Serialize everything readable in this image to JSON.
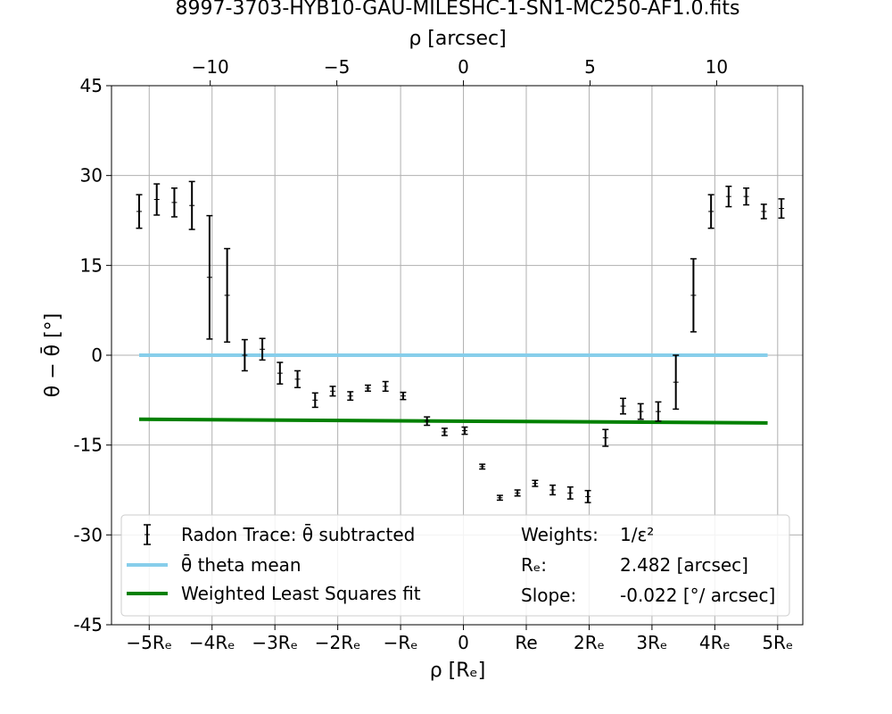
{
  "chart_data": {
    "type": "scatter",
    "title": "8997-3703-HYB10-GAU-MILESHC-1-SN1-MC250-AF1.0.fits",
    "xlabel": "ρ [Rₑ]",
    "xlabel_top": "ρ [arcsec]",
    "ylabel": "θ − θ̄ [°]",
    "xlim": [
      -5.6,
      5.4
    ],
    "ylim": [
      -45,
      45
    ],
    "grid": true,
    "legend_position": "lower center",
    "xticks_bottom": [
      {
        "value": -5,
        "label": "−5Rₑ"
      },
      {
        "value": -4,
        "label": "−4Rₑ"
      },
      {
        "value": -3,
        "label": "−3Rₑ"
      },
      {
        "value": -2,
        "label": "−2Rₑ"
      },
      {
        "value": -1,
        "label": "−Rₑ"
      },
      {
        "value": 0,
        "label": "0"
      },
      {
        "value": 1,
        "label": "Re"
      },
      {
        "value": 2,
        "label": "2Rₑ"
      },
      {
        "value": 3,
        "label": "3Rₑ"
      },
      {
        "value": 4,
        "label": "4Rₑ"
      },
      {
        "value": 5,
        "label": "5Rₑ"
      }
    ],
    "xticks_top": [
      {
        "value": -10,
        "label": "−10"
      },
      {
        "value": -5,
        "label": "−5"
      },
      {
        "value": 0,
        "label": "0"
      },
      {
        "value": 5,
        "label": "5"
      },
      {
        "value": 10,
        "label": "10"
      }
    ],
    "yticks": [
      {
        "value": 45,
        "label": "45"
      },
      {
        "value": 30,
        "label": "30"
      },
      {
        "value": 15,
        "label": "15"
      },
      {
        "value": 0,
        "label": "0"
      },
      {
        "value": -15,
        "label": "-15"
      },
      {
        "value": -30,
        "label": "-30"
      },
      {
        "value": -45,
        "label": "-45"
      }
    ],
    "series": [
      {
        "name": "Radon Trace: θ̄ subtracted",
        "color": "#000000",
        "points": [
          {
            "x": -5.16,
            "y": 24.0,
            "err": 2.8
          },
          {
            "x": -4.88,
            "y": 26.0,
            "err": 2.6
          },
          {
            "x": -4.6,
            "y": 25.5,
            "err": 2.4
          },
          {
            "x": -4.32,
            "y": 25.0,
            "err": 4.0
          },
          {
            "x": -4.04,
            "y": 13.0,
            "err": 10.3
          },
          {
            "x": -3.76,
            "y": 10.0,
            "err": 7.8
          },
          {
            "x": -3.48,
            "y": 0.0,
            "err": 2.6
          },
          {
            "x": -3.2,
            "y": 1.0,
            "err": 1.8
          },
          {
            "x": -2.92,
            "y": -3.0,
            "err": 1.8
          },
          {
            "x": -2.64,
            "y": -4.0,
            "err": 1.4
          },
          {
            "x": -2.36,
            "y": -7.5,
            "err": 1.2
          },
          {
            "x": -2.08,
            "y": -6.0,
            "err": 0.8
          },
          {
            "x": -1.8,
            "y": -6.8,
            "err": 0.7
          },
          {
            "x": -1.52,
            "y": -5.5,
            "err": 0.5
          },
          {
            "x": -1.24,
            "y": -5.2,
            "err": 0.8
          },
          {
            "x": -0.96,
            "y": -6.8,
            "err": 0.6
          },
          {
            "x": -0.58,
            "y": -11.0,
            "err": 0.7
          },
          {
            "x": -0.3,
            "y": -12.8,
            "err": 0.6
          },
          {
            "x": 0.02,
            "y": -12.6,
            "err": 0.6
          },
          {
            "x": 0.3,
            "y": -18.6,
            "err": 0.4
          },
          {
            "x": 0.58,
            "y": -23.8,
            "err": 0.4
          },
          {
            "x": 0.86,
            "y": -23.0,
            "err": 0.5
          },
          {
            "x": 1.14,
            "y": -21.4,
            "err": 0.5
          },
          {
            "x": 1.42,
            "y": -22.5,
            "err": 0.8
          },
          {
            "x": 1.7,
            "y": -23.0,
            "err": 1.0
          },
          {
            "x": 1.98,
            "y": -23.6,
            "err": 1.0
          },
          {
            "x": 2.26,
            "y": -13.8,
            "err": 1.4
          },
          {
            "x": 2.54,
            "y": -8.5,
            "err": 1.3
          },
          {
            "x": 2.82,
            "y": -9.4,
            "err": 1.3
          },
          {
            "x": 3.1,
            "y": -9.4,
            "err": 1.6
          },
          {
            "x": 3.38,
            "y": -4.5,
            "err": 4.5
          },
          {
            "x": 3.66,
            "y": 10.0,
            "err": 6.1
          },
          {
            "x": 3.94,
            "y": 24.0,
            "err": 2.8
          },
          {
            "x": 4.22,
            "y": 26.5,
            "err": 1.7
          },
          {
            "x": 4.5,
            "y": 26.5,
            "err": 1.4
          },
          {
            "x": 4.78,
            "y": 24.0,
            "err": 1.2
          },
          {
            "x": 5.06,
            "y": 24.5,
            "err": 1.6
          }
        ]
      },
      {
        "name": "θ̄ theta mean",
        "color": "#87ceeb",
        "line": [
          {
            "x": -5.16,
            "y": 0.0
          },
          {
            "x": 4.84,
            "y": 0.0
          }
        ]
      },
      {
        "name": "Weighted Least Squares fit",
        "color": "#008000",
        "line": [
          {
            "x": -5.16,
            "y": -10.7
          },
          {
            "x": 4.84,
            "y": -11.3
          }
        ]
      }
    ],
    "annotations": [
      {
        "key": "Weights:",
        "value": "1/ε²"
      },
      {
        "key": "Rₑ:",
        "value": "2.482 [arcsec]"
      },
      {
        "key": "Slope:",
        "value": "-0.022 [°/ arcsec]"
      }
    ],
    "arcsec_per_re": 2.482
  }
}
